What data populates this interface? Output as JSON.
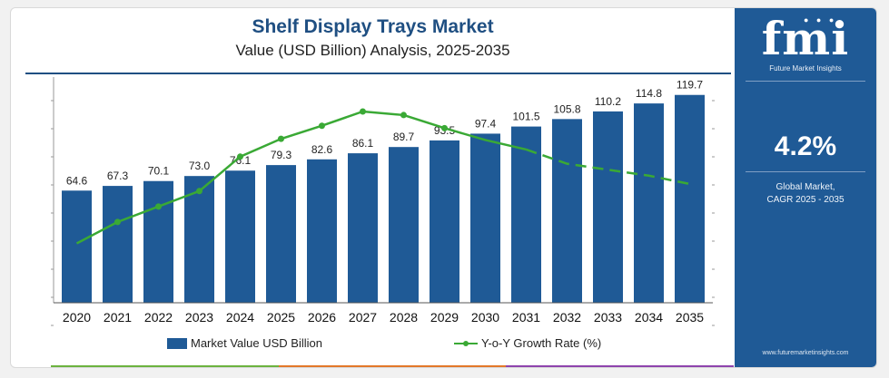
{
  "header": {
    "title": "Shelf Display Trays Market",
    "subtitle": "Value (USD Billion) Analysis, 2025-2035"
  },
  "sidebar": {
    "logo": "fmi",
    "logo_tagline": "Future Market Insights",
    "cagr_value": "4.2%",
    "cagr_label_line1": "Global Market,",
    "cagr_label_line2": "CAGR 2025 - 2035",
    "website": "www.futuremarketinsights.com"
  },
  "legend": {
    "bar_label": "Market Value USD Billion",
    "line_label": "Y-o-Y Growth Rate (%)"
  },
  "colors": {
    "bar": "#1f5a96",
    "line": "#3aa935",
    "brand": "#1f4f82",
    "accent_strip": [
      "#6cb33f",
      "#e3782a",
      "#8e44ad"
    ]
  },
  "chart_data": {
    "type": "bar",
    "categories": [
      "2020",
      "2021",
      "2022",
      "2023",
      "2024",
      "2025",
      "2026",
      "2027",
      "2028",
      "2029",
      "2030",
      "2031",
      "2032",
      "2033",
      "2034",
      "2035"
    ],
    "series": [
      {
        "name": "Market Value USD Billion",
        "type": "bar",
        "values": [
          64.6,
          67.3,
          70.1,
          73.0,
          76.1,
          79.3,
          82.6,
          86.1,
          89.7,
          93.5,
          97.4,
          101.5,
          105.8,
          110.2,
          114.8,
          119.7
        ],
        "labels": [
          "64.6",
          "67.3",
          "70.1",
          "73.0",
          "76.1",
          "79.3",
          "82.6",
          "86.1",
          "89.7",
          "93.5",
          "97.4",
          "101.5",
          "105.8",
          "110.2",
          "114.8",
          "119.7"
        ]
      },
      {
        "name": "Y-o-Y Growth Rate (%)",
        "type": "line",
        "values": [
          4.0,
          4.18,
          4.31,
          4.44,
          4.73,
          4.88,
          4.99,
          5.11,
          5.08,
          4.97,
          4.87,
          4.79,
          4.67,
          4.62,
          4.57,
          4.5
        ],
        "forecast_dashed_from": "2031"
      }
    ],
    "ylim": [
      0,
      130
    ],
    "line_ylim": [
      3.5,
      5.4
    ],
    "grid": false,
    "legend_position": "bottom"
  }
}
